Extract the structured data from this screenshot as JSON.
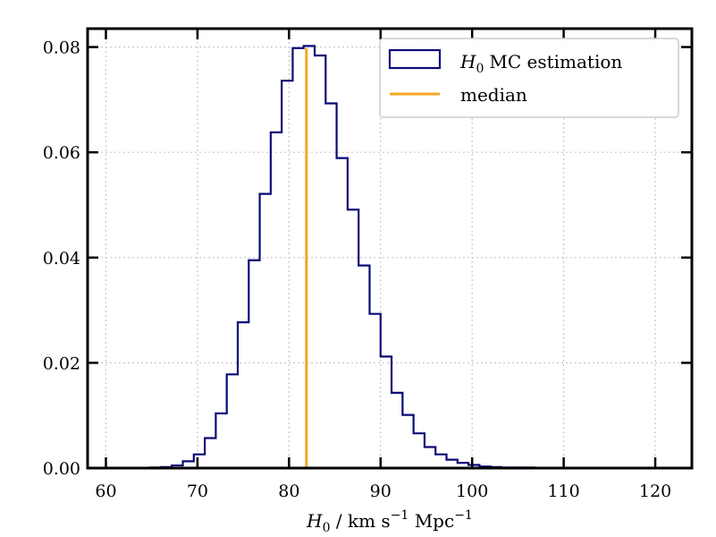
{
  "chart_data": {
    "type": "histogram",
    "xlabel": {
      "symbol": "H",
      "symbol_sub": "0",
      "unit_prefix": " / km s",
      "unit_exp1": "−1",
      "unit_mid": " Mpc",
      "unit_exp2": "−1"
    },
    "ylabel": "",
    "xlim": [
      58,
      124
    ],
    "ylim": [
      0,
      0.0835
    ],
    "x_ticks": [
      60,
      70,
      80,
      90,
      100,
      110,
      120
    ],
    "x_tick_labels": [
      "60",
      "70",
      "80",
      "90",
      "100",
      "110",
      "120"
    ],
    "y_ticks": [
      0.0,
      0.02,
      0.04,
      0.06,
      0.08
    ],
    "y_tick_labels": [
      "0.00",
      "0.02",
      "0.04",
      "0.06",
      "0.08"
    ],
    "grid": true,
    "legend_position": "top-right",
    "series": [
      {
        "name": "MC estimation",
        "name_symbol": "H",
        "name_sub": "0",
        "kind": "step-histogram",
        "color": "#0a0a78",
        "bin_start": 60,
        "bin_width": 1.2,
        "values": [
          0.0,
          0.0,
          0.0,
          0.0,
          0.0001,
          0.0002,
          0.0005,
          0.0013,
          0.0026,
          0.0057,
          0.0104,
          0.0178,
          0.0277,
          0.0395,
          0.0521,
          0.0638,
          0.0736,
          0.0798,
          0.0802,
          0.0784,
          0.0693,
          0.0589,
          0.0491,
          0.0385,
          0.0293,
          0.0212,
          0.0143,
          0.0101,
          0.0066,
          0.004,
          0.0026,
          0.0016,
          0.001,
          0.0006,
          0.0003,
          0.0002,
          0.0001,
          0.0001,
          0.0001,
          0.0,
          0.0,
          0.0,
          0.0,
          0.0,
          0.0,
          0.0,
          0.0,
          0.0,
          0.0,
          0.0
        ]
      },
      {
        "name": "median",
        "kind": "vline",
        "color": "#f5a623",
        "x": 81.9,
        "y_top": 0.0798
      }
    ]
  }
}
